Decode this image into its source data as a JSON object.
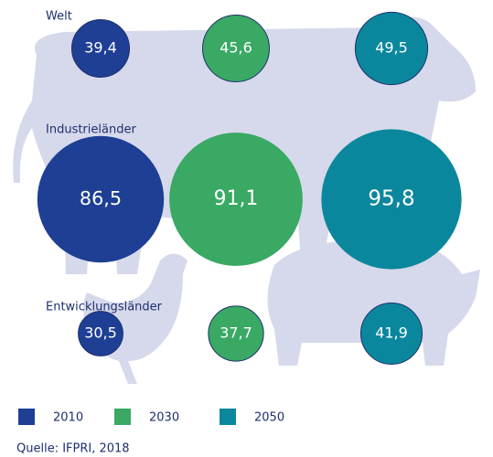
{
  "chart_data": {
    "type": "bubble",
    "categories": [
      "Welt",
      "Industrieländer",
      "Entwicklungsländer"
    ],
    "series": [
      {
        "name": "2010",
        "color": "#1e3f94",
        "values": [
          39.4,
          86.5,
          30.5
        ],
        "value_labels": [
          "39,4",
          "86,5",
          "30,5"
        ]
      },
      {
        "name": "2030",
        "color": "#39a964",
        "values": [
          45.6,
          91.1,
          37.7
        ],
        "value_labels": [
          "45,6",
          "91,1",
          "37,7"
        ]
      },
      {
        "name": "2050",
        "color": "#0b879d",
        "values": [
          49.5,
          95.8,
          41.9
        ],
        "value_labels": [
          "49,5",
          "95,8",
          "41,9"
        ]
      }
    ],
    "source": "Quelle: IFPRI, 2018"
  }
}
